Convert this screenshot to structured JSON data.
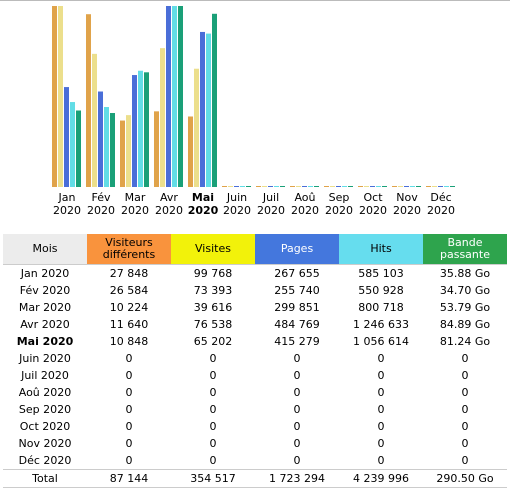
{
  "chart_data": {
    "type": "bar",
    "categories": [
      "Jan 2020",
      "Fév 2020",
      "Mar 2020",
      "Avr 2020",
      "Mai 2020",
      "Juin 2020",
      "Juil 2020",
      "Aoû 2020",
      "Sep 2020",
      "Oct 2020",
      "Nov 2020",
      "Déc 2020"
    ],
    "current_month": "Mai 2020",
    "series": [
      {
        "name": "Visiteurs différents",
        "color": "#e0a34a",
        "values": [
          27848,
          26584,
          10224,
          11640,
          10848,
          0,
          0,
          0,
          0,
          0,
          0,
          0
        ]
      },
      {
        "name": "Visites",
        "color": "#ecdf8c",
        "values": [
          99768,
          73393,
          39616,
          76538,
          65202,
          0,
          0,
          0,
          0,
          0,
          0,
          0
        ]
      },
      {
        "name": "Pages",
        "color": "#4a6ed8",
        "values": [
          267655,
          255740,
          299851,
          484769,
          415279,
          0,
          0,
          0,
          0,
          0,
          0,
          0
        ]
      },
      {
        "name": "Hits",
        "color": "#62dde6",
        "values": [
          585103,
          550928,
          800718,
          1246633,
          1056614,
          0,
          0,
          0,
          0,
          0,
          0,
          0
        ]
      },
      {
        "name": "Bande passante",
        "color": "#1aa078",
        "values": [
          35.88,
          34.7,
          53.79,
          84.89,
          81.24,
          0,
          0,
          0,
          0,
          0,
          0,
          0
        ]
      }
    ]
  },
  "table": {
    "headers": {
      "mois": "Mois",
      "visiteurs_1": "Visiteurs",
      "visiteurs_2": "différents",
      "visites": "Visites",
      "pages": "Pages",
      "hits": "Hits",
      "bande_1": "Bande",
      "bande_2": "passante"
    },
    "rows": [
      {
        "month": "Jan 2020",
        "visiteurs": "27 848",
        "visites": "99 768",
        "pages": "267 655",
        "hits": "585 103",
        "bande": "35.88 Go"
      },
      {
        "month": "Fév 2020",
        "visiteurs": "26 584",
        "visites": "73 393",
        "pages": "255 740",
        "hits": "550 928",
        "bande": "34.70 Go"
      },
      {
        "month": "Mar 2020",
        "visiteurs": "10 224",
        "visites": "39 616",
        "pages": "299 851",
        "hits": "800 718",
        "bande": "53.79 Go"
      },
      {
        "month": "Avr 2020",
        "visiteurs": "11 640",
        "visites": "76 538",
        "pages": "484 769",
        "hits": "1 246 633",
        "bande": "84.89 Go"
      },
      {
        "month": "Mai 2020",
        "visiteurs": "10 848",
        "visites": "65 202",
        "pages": "415 279",
        "hits": "1 056 614",
        "bande": "81.24 Go"
      },
      {
        "month": "Juin 2020",
        "visiteurs": "0",
        "visites": "0",
        "pages": "0",
        "hits": "0",
        "bande": "0"
      },
      {
        "month": "Juil 2020",
        "visiteurs": "0",
        "visites": "0",
        "pages": "0",
        "hits": "0",
        "bande": "0"
      },
      {
        "month": "Aoû 2020",
        "visiteurs": "0",
        "visites": "0",
        "pages": "0",
        "hits": "0",
        "bande": "0"
      },
      {
        "month": "Sep 2020",
        "visiteurs": "0",
        "visites": "0",
        "pages": "0",
        "hits": "0",
        "bande": "0"
      },
      {
        "month": "Oct 2020",
        "visiteurs": "0",
        "visites": "0",
        "pages": "0",
        "hits": "0",
        "bande": "0"
      },
      {
        "month": "Nov 2020",
        "visiteurs": "0",
        "visites": "0",
        "pages": "0",
        "hits": "0",
        "bande": "0"
      },
      {
        "month": "Déc 2020",
        "visiteurs": "0",
        "visites": "0",
        "pages": "0",
        "hits": "0",
        "bande": "0"
      }
    ],
    "total": {
      "label": "Total",
      "visiteurs": "87 144",
      "visites": "354 517",
      "pages": "1 723 294",
      "hits": "4 239 996",
      "bande": "290.50 Go"
    }
  }
}
